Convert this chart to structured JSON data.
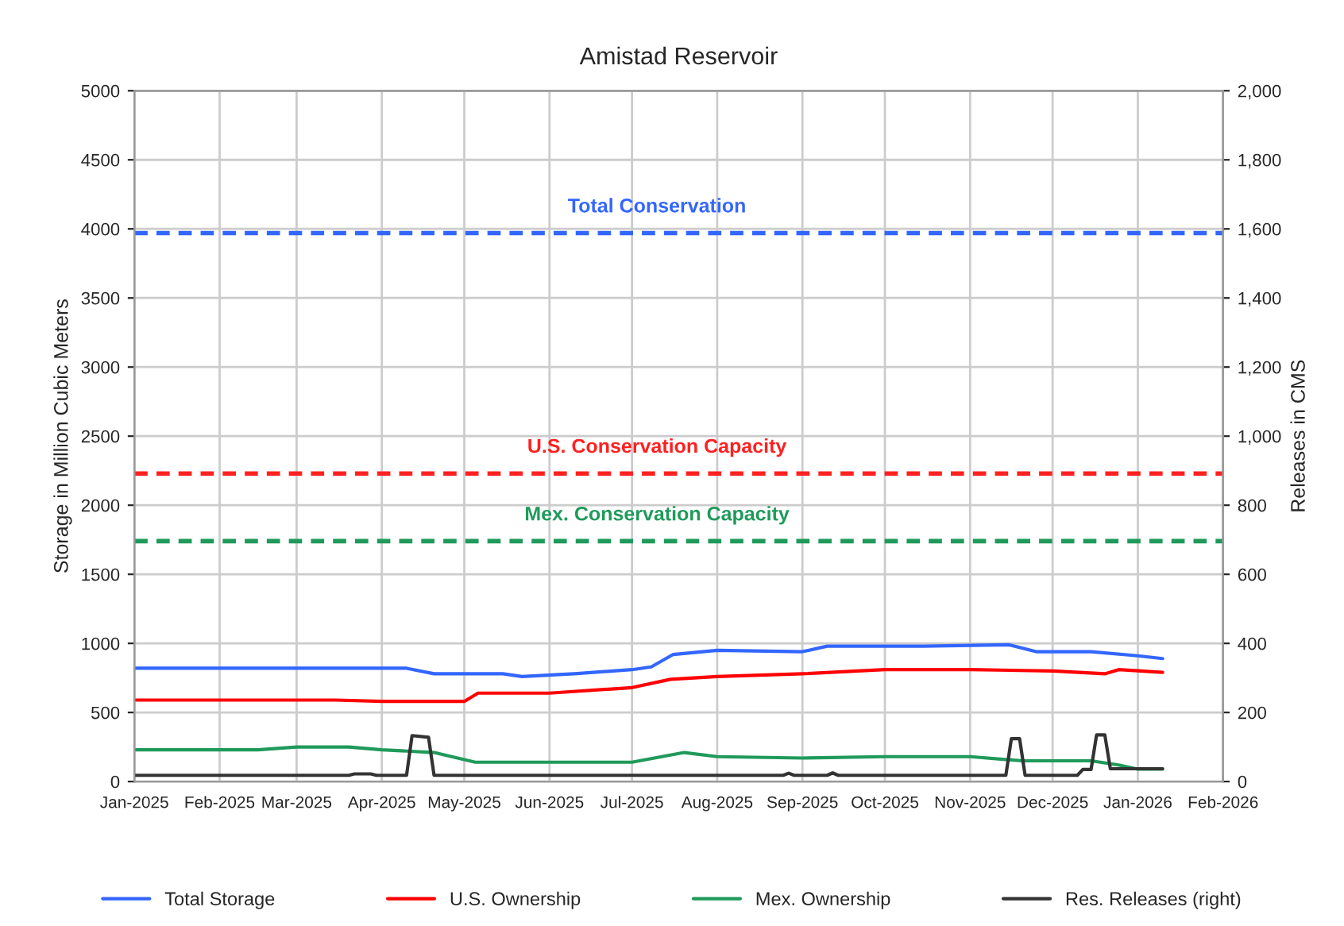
{
  "chart_data": {
    "type": "line",
    "title": "Amistad Reservoir",
    "ylabel": "Storage in Million Cubic Meters",
    "y2label": "Releases in CMS",
    "xlim": [
      "2025-01-01",
      "2026-02-01"
    ],
    "xticks": [
      {
        "value": "2025-01-01",
        "label": "Jan-2025"
      },
      {
        "value": "2025-02-01",
        "label": "Feb-2025"
      },
      {
        "value": "2025-03-01",
        "label": "Mar-2025"
      },
      {
        "value": "2025-04-01",
        "label": "Apr-2025"
      },
      {
        "value": "2025-05-01",
        "label": "May-2025"
      },
      {
        "value": "2025-06-01",
        "label": "Jun-2025"
      },
      {
        "value": "2025-07-01",
        "label": "Jul-2025"
      },
      {
        "value": "2025-08-01",
        "label": "Aug-2025"
      },
      {
        "value": "2025-09-01",
        "label": "Sep-2025"
      },
      {
        "value": "2025-10-01",
        "label": "Oct-2025"
      },
      {
        "value": "2025-11-01",
        "label": "Nov-2025"
      },
      {
        "value": "2025-12-01",
        "label": "Dec-2025"
      },
      {
        "value": "2026-01-01",
        "label": "Jan-2026"
      },
      {
        "value": "2026-02-01",
        "label": "Feb-2026"
      }
    ],
    "ylim": [
      0,
      5000
    ],
    "yticks": [
      0,
      500,
      1000,
      1500,
      2000,
      2500,
      3000,
      3500,
      4000,
      4500,
      5000
    ],
    "y2lim": [
      0,
      2000
    ],
    "y2ticks": [
      {
        "value": 0,
        "label": "0"
      },
      {
        "value": 200,
        "label": "200"
      },
      {
        "value": 400,
        "label": "400"
      },
      {
        "value": 600,
        "label": "600"
      },
      {
        "value": 800,
        "label": "800"
      },
      {
        "value": 1000,
        "label": "1,000"
      },
      {
        "value": 1200,
        "label": "1,200"
      },
      {
        "value": 1400,
        "label": "1,400"
      },
      {
        "value": 1600,
        "label": "1,600"
      },
      {
        "value": 1800,
        "label": "1,800"
      },
      {
        "value": 2000,
        "label": "2,000"
      }
    ],
    "grid": true,
    "legend": "bottom",
    "ref_lines": [
      {
        "axis": "y",
        "value": 3970,
        "label": "Total Conservation",
        "color": "#3366ff",
        "line_style": "dashed"
      },
      {
        "axis": "y",
        "value": 2230,
        "label": "U.S. Conservation Capacity",
        "color": "#ff2020",
        "line_style": "dashed"
      },
      {
        "axis": "y",
        "value": 1740,
        "label": "Mex. Conservation Capacity",
        "color": "#1f9a5a",
        "line_style": "dashed"
      }
    ],
    "series": [
      {
        "name": "Total Storage",
        "color": "#3366ff",
        "x": [
          "2025-01-01",
          "2025-03-01",
          "2025-04-10",
          "2025-04-20",
          "2025-05-15",
          "2025-05-22",
          "2025-06-10",
          "2025-07-01",
          "2025-07-08",
          "2025-07-16",
          "2025-08-01",
          "2025-09-01",
          "2025-09-10",
          "2025-10-15",
          "2025-11-15",
          "2025-11-25",
          "2025-12-15",
          "2026-01-01",
          "2026-01-10"
        ],
        "values": [
          820,
          820,
          820,
          780,
          780,
          760,
          780,
          810,
          830,
          920,
          950,
          940,
          980,
          980,
          990,
          940,
          940,
          910,
          890
        ]
      },
      {
        "name": "U.S. Ownership",
        "color": "#ff0000",
        "x": [
          "2025-01-01",
          "2025-03-15",
          "2025-04-01",
          "2025-05-01",
          "2025-05-06",
          "2025-06-01",
          "2025-07-01",
          "2025-07-15",
          "2025-08-01",
          "2025-09-01",
          "2025-10-01",
          "2025-11-01",
          "2025-12-01",
          "2025-12-20",
          "2025-12-25",
          "2026-01-10"
        ],
        "values": [
          590,
          590,
          580,
          580,
          640,
          640,
          680,
          740,
          760,
          780,
          810,
          810,
          800,
          780,
          810,
          790
        ]
      },
      {
        "name": "Mex. Ownership",
        "color": "#1f9a5a",
        "x": [
          "2025-01-01",
          "2025-02-15",
          "2025-03-01",
          "2025-03-20",
          "2025-04-01",
          "2025-04-20",
          "2025-05-05",
          "2025-06-01",
          "2025-07-01",
          "2025-07-20",
          "2025-08-01",
          "2025-09-01",
          "2025-10-01",
          "2025-11-01",
          "2025-11-20",
          "2025-12-15",
          "2025-12-25",
          "2026-01-01",
          "2026-01-10"
        ],
        "values": [
          230,
          230,
          250,
          250,
          230,
          210,
          140,
          140,
          140,
          210,
          180,
          170,
          180,
          180,
          150,
          150,
          120,
          90,
          90
        ]
      },
      {
        "name": "Res. Releases (right)",
        "color": "#333333",
        "axis": "y2",
        "x": [
          "2025-01-01",
          "2025-03-20",
          "2025-03-22",
          "2025-03-28",
          "2025-03-30",
          "2025-04-10",
          "2025-04-12",
          "2025-04-18",
          "2025-04-20",
          "2025-08-25",
          "2025-08-27",
          "2025-08-29",
          "2025-09-10",
          "2025-09-12",
          "2025-09-14",
          "2025-11-14",
          "2025-11-16",
          "2025-11-19",
          "2025-11-21",
          "2025-12-10",
          "2025-12-12",
          "2025-12-15",
          "2025-12-17",
          "2025-12-20",
          "2025-12-22",
          "2026-01-10"
        ],
        "values": [
          18,
          18,
          22,
          22,
          18,
          18,
          133,
          128,
          18,
          18,
          24,
          18,
          18,
          25,
          18,
          18,
          124,
          124,
          18,
          18,
          35,
          35,
          135,
          135,
          37,
          37
        ]
      }
    ]
  }
}
